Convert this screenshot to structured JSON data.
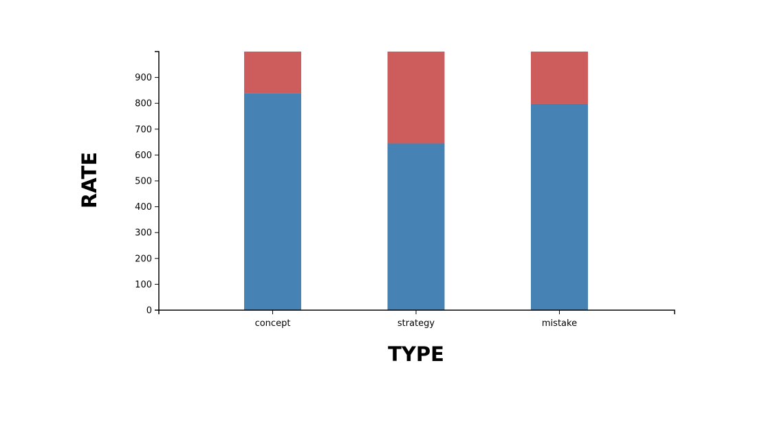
{
  "chart_data": {
    "type": "bar",
    "stacked": true,
    "categories": [
      "concept",
      "strategy",
      "mistake"
    ],
    "series": [
      {
        "values": [
          838,
          645,
          798
        ],
        "color": "#4682b4"
      },
      {
        "values": [
          162,
          355,
          202
        ],
        "color": "#cd5c5c"
      }
    ],
    "xlabel": "TYPE",
    "ylabel": "RATE",
    "ylim": [
      0,
      1000
    ],
    "yticks": [
      0,
      100,
      200,
      300,
      400,
      500,
      600,
      700,
      800,
      900
    ],
    "grid": false,
    "legend": "none"
  }
}
